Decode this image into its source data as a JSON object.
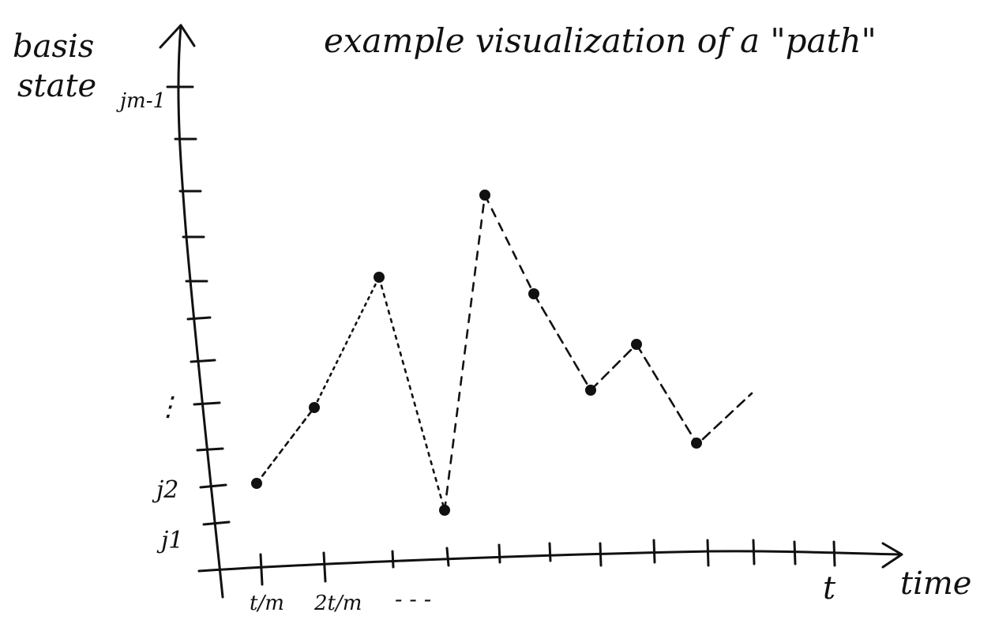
{
  "title": "example visualization of a \"path\"",
  "y_axis_label": [
    "basis",
    "state"
  ],
  "x_axis_label": "time",
  "y_tick_labels": [
    "j1",
    "j2",
    "⋮",
    "jm-1"
  ],
  "x_tick_labels": [
    "t/m",
    "2t/m",
    "- - -",
    "t"
  ],
  "path_points": [
    {
      "time_step": 1,
      "state_level": 2
    },
    {
      "time_step": 2,
      "state_level": 4
    },
    {
      "time_step": 3,
      "state_level": 7
    },
    {
      "time_step": 4,
      "state_level": 1
    },
    {
      "time_step": 5,
      "state_level": 9
    },
    {
      "time_step": 6,
      "state_level": 6
    },
    {
      "time_step": 7,
      "state_level": 4
    },
    {
      "time_step": 8,
      "state_level": 5
    },
    {
      "time_step": 9,
      "state_level": 3
    }
  ],
  "colors": {
    "ink": "#111111",
    "paper": "#ffffff"
  }
}
